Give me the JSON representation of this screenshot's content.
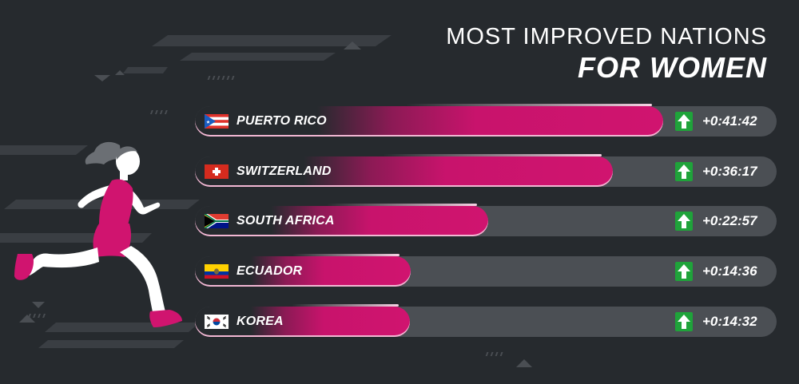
{
  "title": {
    "line1": "MOST IMPROVED NATIONS",
    "line2": "FOR WOMEN"
  },
  "colors": {
    "background": "#262a2e",
    "bar": "#d0146f",
    "track": "#4b4f54",
    "arrow": "#1fa33a"
  },
  "chart_data": {
    "type": "bar",
    "orientation": "horizontal",
    "categories": [
      "PUERTO RICO",
      "SWITZERLAND",
      "SOUTH AFRICA",
      "ECUADOR",
      "KOREA"
    ],
    "labels": [
      "+0:41:42",
      "+0:36:17",
      "+0:22:57",
      "+0:14:36",
      "+0:14:32"
    ],
    "values_seconds": [
      2502,
      2177,
      1377,
      876,
      872
    ],
    "flags": [
      "puerto-rico-flag-icon",
      "switzerland-flag-icon",
      "south-africa-flag-icon",
      "ecuador-flag-icon",
      "korea-flag-icon"
    ],
    "indicator_icon": "up-arrow-icon",
    "title": "MOST IMPROVED NATIONS FOR WOMEN",
    "grid": false,
    "legend": "none"
  }
}
